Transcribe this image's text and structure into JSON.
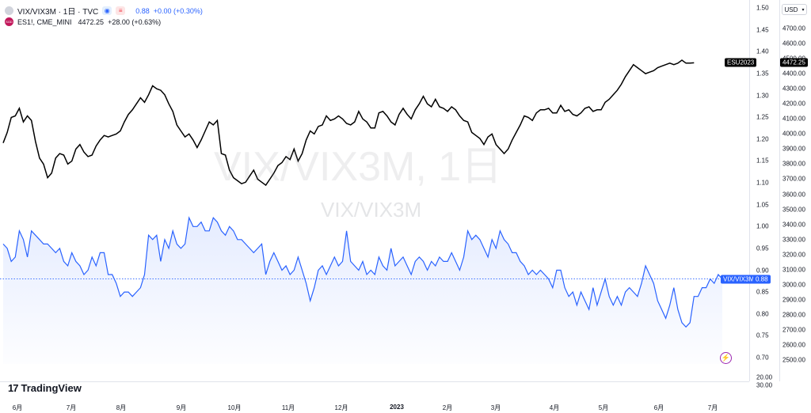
{
  "header": {
    "symbol": "VIX/VIX3M · 1日 · TVC",
    "symbol_value": "0.88",
    "symbol_change": "+0.00 (+0.30%)",
    "compare_badge": "SGD",
    "compare_symbol": "ES1!, CME_MINI",
    "compare_value": "4472.25",
    "compare_change": "+28.00 (+0.63%)"
  },
  "watermark": {
    "main": "VIX/VIX3M, 1日",
    "sub": "VIX/VIX3M"
  },
  "currency_button": "USD",
  "logo_text": "TradingView",
  "chart_data": [
    {
      "type": "line",
      "series": [
        {
          "name": "VIX/VIX3M",
          "color": "#2962ff",
          "x_start": "2023-05-29",
          "last_value": "0.88",
          "values": [
            0.96,
            0.95,
            0.92,
            0.93,
            0.99,
            0.97,
            0.93,
            0.99,
            0.98,
            0.97,
            0.96,
            0.96,
            0.95,
            0.94,
            0.95,
            0.92,
            0.91,
            0.94,
            0.92,
            0.91,
            0.89,
            0.9,
            0.93,
            0.91,
            0.94,
            0.94,
            0.89,
            0.89,
            0.87,
            0.84,
            0.85,
            0.85,
            0.84,
            0.85,
            0.86,
            0.89,
            0.98,
            0.97,
            0.98,
            0.92,
            0.97,
            0.95,
            0.99,
            0.96,
            0.95,
            0.96,
            1.02,
            1.0,
            1.0,
            1.01,
            0.99,
            0.99,
            1.02,
            1.01,
            0.99,
            0.98,
            1.0,
            0.99,
            0.97,
            0.97,
            0.96,
            0.95,
            0.94,
            0.95,
            0.96,
            0.89,
            0.92,
            0.94,
            0.92,
            0.9,
            0.91,
            0.89,
            0.9,
            0.93,
            0.9,
            0.87,
            0.83,
            0.86,
            0.9,
            0.91,
            0.89,
            0.91,
            0.93,
            0.91,
            0.92,
            0.99,
            0.92,
            0.91,
            0.9,
            0.92,
            0.89,
            0.9,
            0.89,
            0.93,
            0.91,
            0.9,
            0.95,
            0.91,
            0.92,
            0.93,
            0.91,
            0.89,
            0.92,
            0.93,
            0.92,
            0.9,
            0.92,
            0.91,
            0.93,
            0.92,
            0.92,
            0.94,
            0.92,
            0.9,
            0.93,
            0.99,
            0.97,
            0.98,
            0.97,
            0.95,
            0.93,
            0.97,
            0.95,
            0.99,
            0.97,
            0.96,
            0.94,
            0.94,
            0.92,
            0.91,
            0.89,
            0.9,
            0.89,
            0.9,
            0.89,
            0.88,
            0.86,
            0.9,
            0.9,
            0.86,
            0.84,
            0.85,
            0.82,
            0.85,
            0.83,
            0.81,
            0.86,
            0.82,
            0.85,
            0.88,
            0.84,
            0.82,
            0.84,
            0.82,
            0.85,
            0.86,
            0.85,
            0.84,
            0.87,
            0.91,
            0.89,
            0.87,
            0.83,
            0.81,
            0.79,
            0.82,
            0.86,
            0.81,
            0.78,
            0.77,
            0.78,
            0.84,
            0.84,
            0.86,
            0.86,
            0.88,
            0.87,
            0.89,
            0.88
          ]
        },
        {
          "name": "ESU2023",
          "color": "#000000",
          "last_value": "4472.25",
          "values": [
            3940,
            4010,
            4110,
            4120,
            4170,
            4080,
            4120,
            4090,
            3950,
            3840,
            3800,
            3710,
            3740,
            3840,
            3870,
            3860,
            3800,
            3820,
            3900,
            3930,
            3880,
            3850,
            3860,
            3920,
            3960,
            3990,
            3980,
            3990,
            4000,
            4020,
            4080,
            4130,
            4160,
            4200,
            4240,
            4210,
            4260,
            4320,
            4300,
            4290,
            4260,
            4200,
            4150,
            4060,
            4020,
            3980,
            4000,
            3960,
            3910,
            3960,
            4020,
            4080,
            4060,
            4090,
            3870,
            3860,
            3760,
            3710,
            3690,
            3670,
            3680,
            3720,
            3760,
            3700,
            3680,
            3660,
            3700,
            3740,
            3790,
            3810,
            3850,
            3830,
            3900,
            3820,
            3870,
            3960,
            4020,
            4000,
            4050,
            4060,
            4120,
            4090,
            4100,
            4120,
            4100,
            4070,
            4060,
            4080,
            4150,
            4100,
            4080,
            4040,
            4040,
            4140,
            4150,
            4120,
            4080,
            4060,
            4130,
            4170,
            4130,
            4100,
            4160,
            4200,
            4250,
            4200,
            4180,
            4230,
            4180,
            4170,
            4150,
            4180,
            4160,
            4120,
            4090,
            4080,
            4010,
            3990,
            3970,
            3930,
            3980,
            4000,
            3930,
            3900,
            3870,
            3900,
            3960,
            4010,
            4060,
            4120,
            4110,
            4090,
            4140,
            4160,
            4160,
            4170,
            4140,
            4140,
            4190,
            4150,
            4160,
            4130,
            4120,
            4140,
            4170,
            4180,
            4150,
            4160,
            4160,
            4210,
            4230,
            4260,
            4290,
            4330,
            4380,
            4420,
            4460,
            4440,
            4420,
            4400,
            4410,
            4420,
            4440,
            4450,
            4460,
            4470,
            4460,
            4470,
            4490,
            4470,
            4470,
            4472
          ]
        }
      ],
      "y_axis_ratio": {
        "ticks": [
          "1.50",
          "1.45",
          "1.40",
          "1.35",
          "1.30",
          "1.25",
          "1.20",
          "1.15",
          "1.10",
          "1.05",
          "1.00",
          "0.95",
          "0.90",
          "0.85",
          "0.80",
          "0.75",
          "0.70",
          "20.00",
          "30.00"
        ]
      },
      "y_axis_price": {
        "ticks": [
          "4700.00",
          "4600.00",
          "4500.00",
          "4400.00",
          "4300.00",
          "4200.00",
          "4100.00",
          "4000.00",
          "3900.00",
          "3800.00",
          "3700.00",
          "3600.00",
          "3500.00",
          "3400.00",
          "3300.00",
          "3200.00",
          "3100.00",
          "3000.00",
          "2900.00",
          "2800.00",
          "2700.00",
          "2600.00",
          "2500.00"
        ]
      },
      "x_axis": {
        "ticks": [
          "6月",
          "7月",
          "8月",
          "9月",
          "10月",
          "11月",
          "12月",
          "2023",
          "2月",
          "3月",
          "4月",
          "5月",
          "6月",
          "7月"
        ]
      }
    }
  ]
}
